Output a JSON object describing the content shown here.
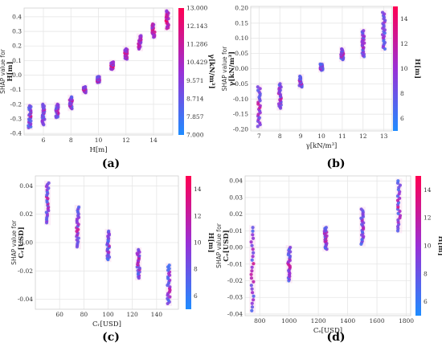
{
  "colors": {
    "low": "#1e8cff",
    "mid": "#9a2fd6",
    "high": "#ff0052",
    "grid": "#e6e6e6"
  },
  "chart_data": [
    {
      "panel": "(a)",
      "type": "scatter",
      "xlabel": "H[m]",
      "ylabel_line1": "SHAP value for",
      "ylabel_line2": "H[m]",
      "xlim": [
        4.6,
        15.4
      ],
      "ylim": [
        -0.41,
        0.46
      ],
      "xticks": [
        "6",
        "8",
        "10",
        "12",
        "14"
      ],
      "xtick_values": [
        6,
        8,
        10,
        12,
        14
      ],
      "yticks": [
        "-0.4",
        "-0.3",
        "-0.2",
        "-0.1",
        "0.0",
        "0.1",
        "0.2",
        "0.3",
        "0.4"
      ],
      "ytick_values": [
        -0.4,
        -0.3,
        -0.2,
        -0.1,
        0.0,
        0.1,
        0.2,
        0.3,
        0.4
      ],
      "colorbar_label": "γ[kN/m³]",
      "colorbar_range": [
        7.0,
        13.0
      ],
      "colorbar_ticks": [
        "13.000",
        "12.143",
        "11.286",
        "10.429",
        "9.571",
        "8.714",
        "7.857",
        "7.000"
      ],
      "colorbar_tick_values": [
        13.0,
        12.143,
        11.286,
        10.429,
        9.571,
        8.714,
        7.857,
        7.0
      ],
      "clusters": [
        {
          "x": 5,
          "ymin": -0.36,
          "ymax": -0.21
        },
        {
          "x": 6,
          "ymin": -0.34,
          "ymax": -0.2
        },
        {
          "x": 7,
          "ymin": -0.29,
          "ymax": -0.2
        },
        {
          "x": 8,
          "ymin": -0.23,
          "ymax": -0.15
        },
        {
          "x": 9,
          "ymin": -0.12,
          "ymax": -0.08
        },
        {
          "x": 10,
          "ymin": -0.05,
          "ymax": -0.01
        },
        {
          "x": 11,
          "ymin": 0.04,
          "ymax": 0.09
        },
        {
          "x": 12,
          "ymin": 0.11,
          "ymax": 0.18
        },
        {
          "x": 13,
          "ymin": 0.18,
          "ymax": 0.27
        },
        {
          "x": 14,
          "ymin": 0.26,
          "ymax": 0.35
        },
        {
          "x": 15,
          "ymin": 0.32,
          "ymax": 0.44
        }
      ]
    },
    {
      "panel": "(b)",
      "type": "scatter",
      "xlabel": "γ[kN/m³]",
      "ylabel_line1": "SHAP value for",
      "ylabel_line2": "γ[kN/m³]",
      "xlim": [
        6.6,
        13.4
      ],
      "ylim": [
        -0.205,
        0.205
      ],
      "xticks": [
        "7",
        "8",
        "9",
        "10",
        "11",
        "12",
        "13"
      ],
      "xtick_values": [
        7,
        8,
        9,
        10,
        11,
        12,
        13
      ],
      "yticks": [
        "-0.20",
        "-0.15",
        "-0.10",
        "-0.05",
        "0.00",
        "0.05",
        "0.10",
        "0.15",
        "0.20"
      ],
      "ytick_values": [
        -0.2,
        -0.15,
        -0.1,
        -0.05,
        0.0,
        0.05,
        0.1,
        0.15,
        0.2
      ],
      "colorbar_label": "H[m]",
      "colorbar_range": [
        5,
        15
      ],
      "colorbar_ticks": [
        "14",
        "12",
        "10",
        "8",
        "6"
      ],
      "colorbar_tick_values": [
        14,
        12,
        10,
        8,
        6
      ],
      "clusters": [
        {
          "x": 7,
          "ymin": -0.19,
          "ymax": -0.06
        },
        {
          "x": 8,
          "ymin": -0.13,
          "ymax": -0.05
        },
        {
          "x": 9,
          "ymin": -0.06,
          "ymax": -0.025
        },
        {
          "x": 10,
          "ymin": -0.005,
          "ymax": 0.015
        },
        {
          "x": 11,
          "ymin": 0.03,
          "ymax": 0.065
        },
        {
          "x": 12,
          "ymin": 0.04,
          "ymax": 0.125
        },
        {
          "x": 13,
          "ymin": 0.065,
          "ymax": 0.185
        }
      ]
    },
    {
      "panel": "(c)",
      "type": "scatter",
      "xlabel": "Cᵣ[USD]",
      "ylabel_line1": "SHAP value for",
      "ylabel_line2": "Cᵣ[USD]",
      "xlim": [
        40,
        158
      ],
      "ylim": [
        -0.047,
        0.047
      ],
      "xticks": [
        "60",
        "80",
        "100",
        "120",
        "140"
      ],
      "xtick_values": [
        60,
        80,
        100,
        120,
        140
      ],
      "yticks": [
        "-0.04",
        "-0.02",
        "0.00",
        "0.02",
        "0.04"
      ],
      "ytick_values": [
        -0.04,
        -0.02,
        0.0,
        0.02,
        0.04
      ],
      "colorbar_label": "H[m]",
      "colorbar_range": [
        5,
        15
      ],
      "colorbar_ticks": [
        "14",
        "12",
        "10",
        "8",
        "6"
      ],
      "colorbar_tick_values": [
        14,
        12,
        10,
        8,
        6
      ],
      "clusters": [
        {
          "x": 50,
          "ymin": 0.014,
          "ymax": 0.042
        },
        {
          "x": 75,
          "ymin": -0.003,
          "ymax": 0.025
        },
        {
          "x": 100,
          "ymin": -0.012,
          "ymax": 0.008
        },
        {
          "x": 125,
          "ymin": -0.025,
          "ymax": -0.005
        },
        {
          "x": 150,
          "ymin": -0.043,
          "ymax": -0.016
        }
      ]
    },
    {
      "panel": "(d)",
      "type": "scatter",
      "xlabel": "Cₑ[USD]",
      "ylabel_line1": "SHAP value for",
      "ylabel_line2": "Cₑ[USD]",
      "xlim": [
        700,
        1830
      ],
      "ylim": [
        -0.041,
        0.043
      ],
      "xticks": [
        "800",
        "1000",
        "1200",
        "1400",
        "1600",
        "1800"
      ],
      "xtick_values": [
        800,
        1000,
        1200,
        1400,
        1600,
        1800
      ],
      "yticks": [
        "-0.04",
        "-0.03",
        "-0.02",
        "-0.01",
        "0.00",
        "0.01",
        "0.02",
        "0.03",
        "0.04"
      ],
      "ytick_values": [
        -0.04,
        -0.03,
        -0.02,
        -0.01,
        0.0,
        0.01,
        0.02,
        0.03,
        0.04
      ],
      "colorbar_label": "H[m]",
      "colorbar_range": [
        5,
        15
      ],
      "colorbar_ticks": [
        "14",
        "12",
        "10",
        "8",
        "6"
      ],
      "colorbar_tick_values": [
        14,
        12,
        10,
        8,
        6
      ],
      "clusters": [
        {
          "x": 750,
          "ymin": -0.038,
          "ymax": 0.012
        },
        {
          "x": 1000,
          "ymin": -0.02,
          "ymax": -0.0
        },
        {
          "x": 1250,
          "ymin": -0.001,
          "ymax": 0.012
        },
        {
          "x": 1500,
          "ymin": 0.002,
          "ymax": 0.023
        },
        {
          "x": 1750,
          "ymin": 0.01,
          "ymax": 0.04
        }
      ]
    }
  ]
}
